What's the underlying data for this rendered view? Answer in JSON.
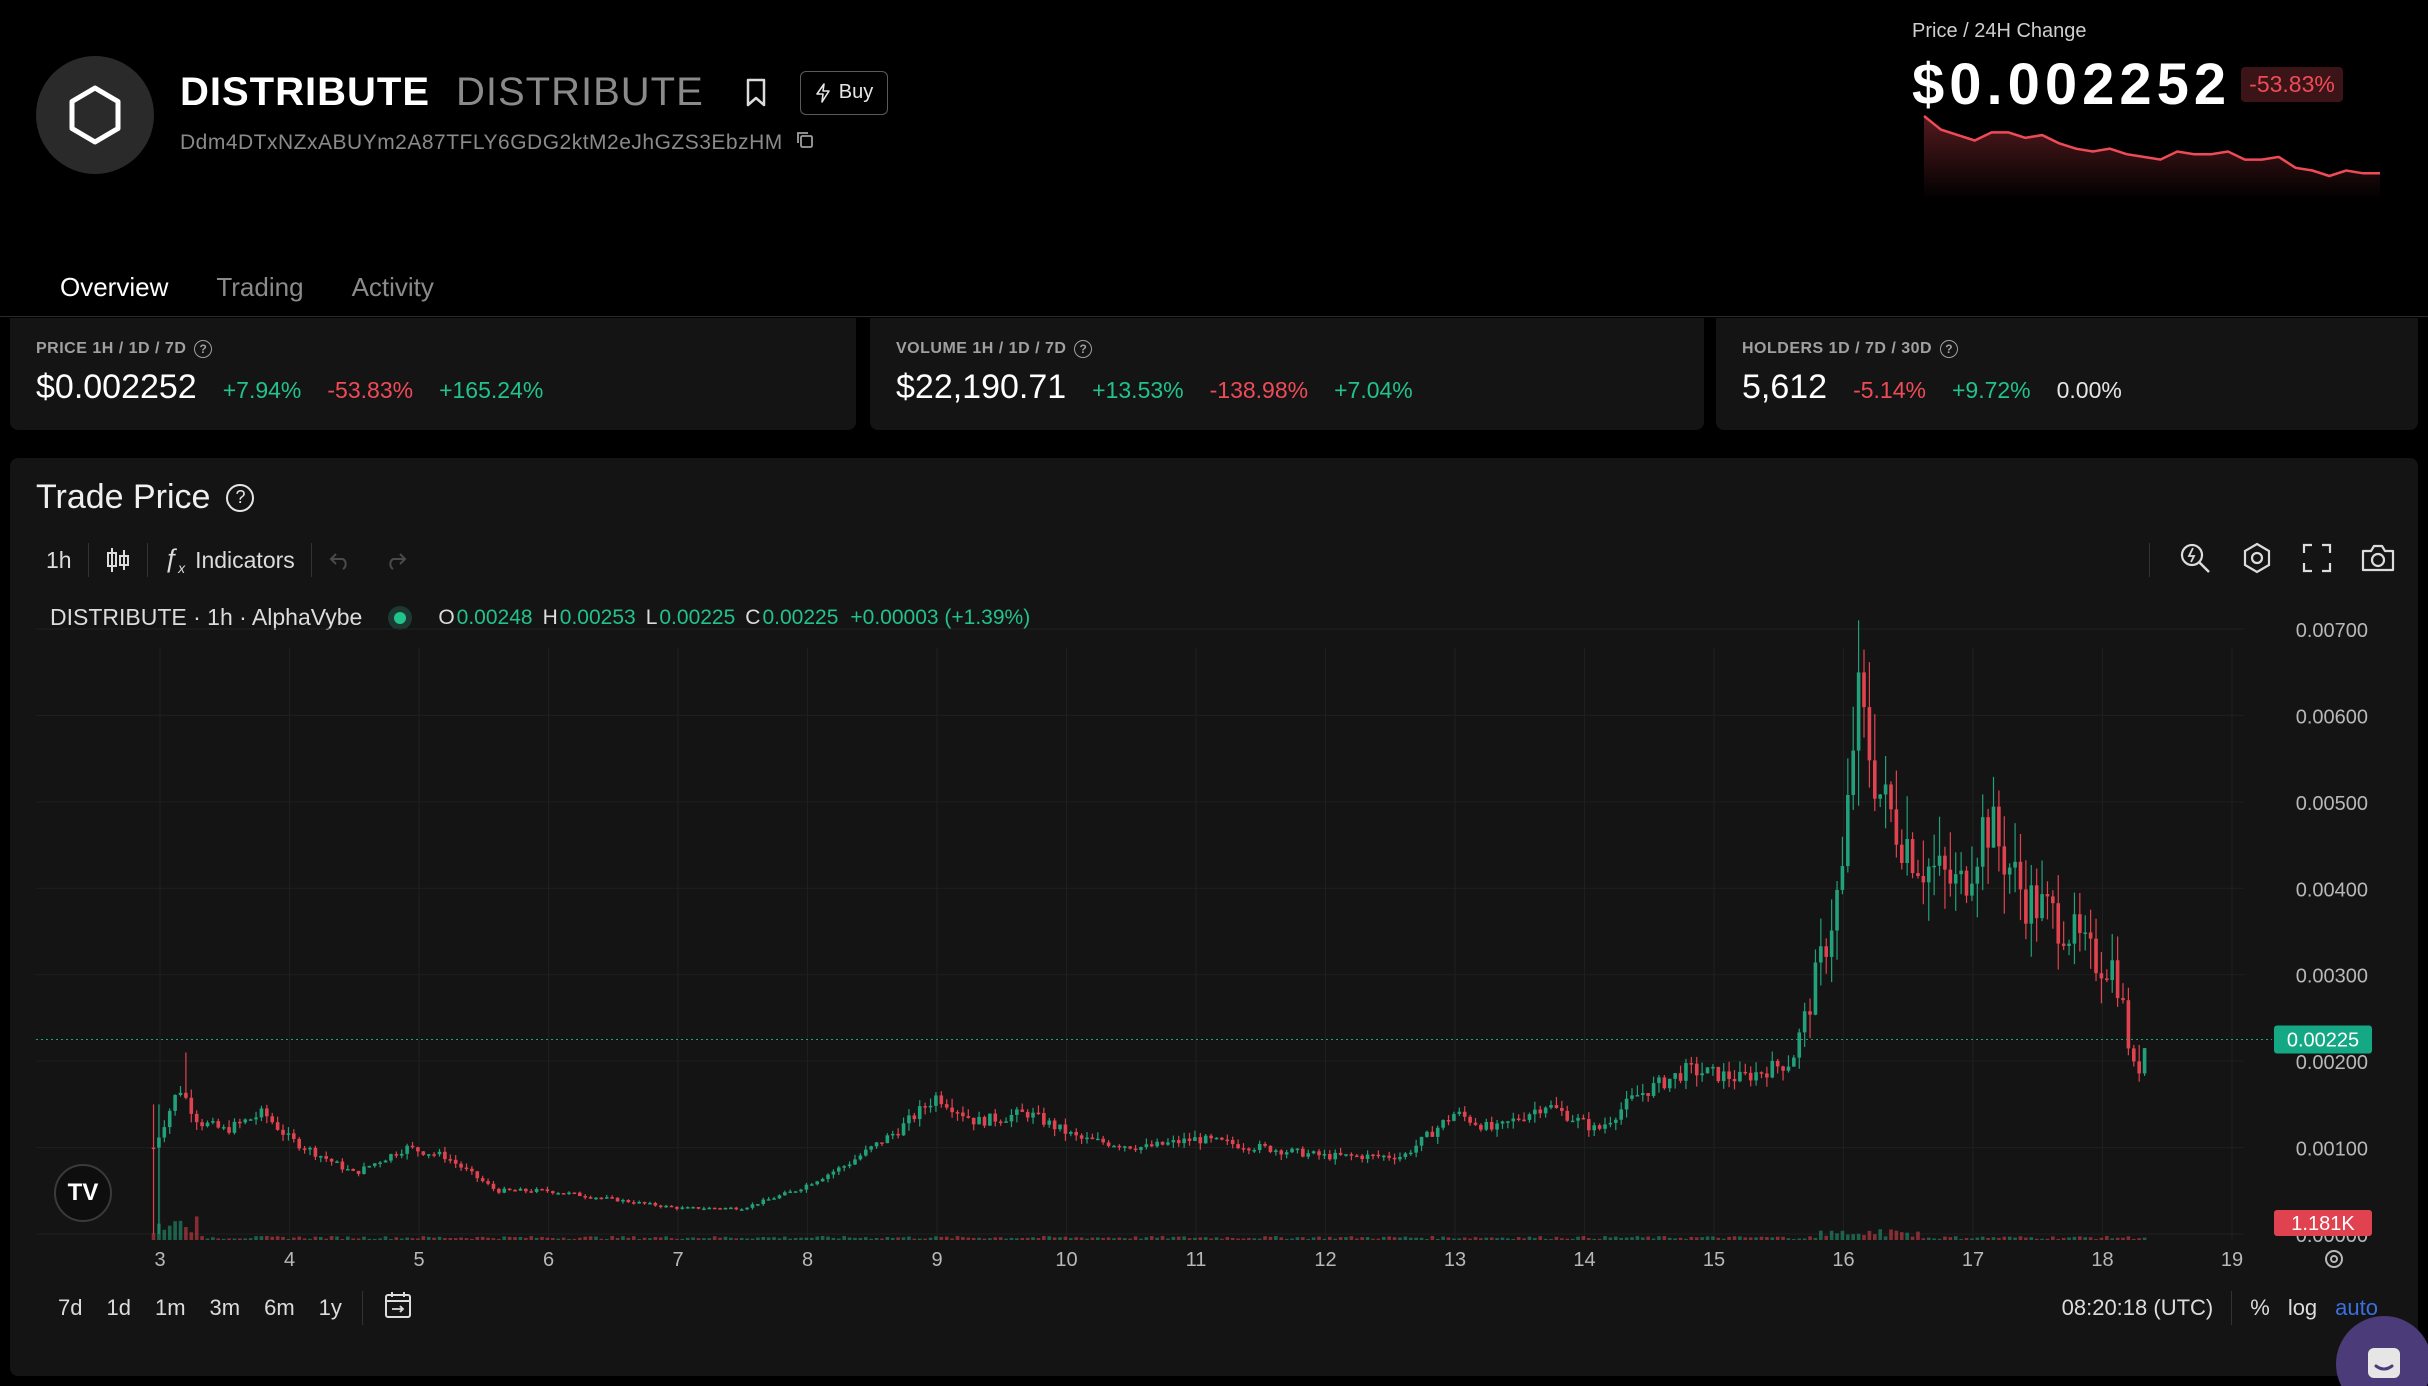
{
  "token": {
    "name": "DISTRIBUTE",
    "symbol": "DISTRIBUTE",
    "address": "Ddm4DTxNZxABUYm2A87TFLY6GDG2ktM2eJhGZS3EbzHM",
    "buy_label": "Buy"
  },
  "price_header": {
    "label": "Price / 24H Change",
    "value": "$0.002252",
    "change": "-53.83%",
    "sparkline_values": [
      0.0048,
      0.0043,
      0.0041,
      0.0039,
      0.0042,
      0.0042,
      0.004,
      0.0041,
      0.0038,
      0.0036,
      0.0035,
      0.0036,
      0.0034,
      0.0033,
      0.0032,
      0.0035,
      0.0034,
      0.0034,
      0.0035,
      0.0032,
      0.0032,
      0.0033,
      0.0029,
      0.0028,
      0.0026,
      0.0028,
      0.0027,
      0.0027
    ]
  },
  "tabs": [
    {
      "label": "Overview"
    },
    {
      "label": "Trading"
    },
    {
      "label": "Activity"
    }
  ],
  "stats": {
    "price": {
      "label": "PRICE 1H / 1D / 7D",
      "value": "$0.002252",
      "c1": "+7.94%",
      "c2": "-53.83%",
      "c3": "+165.24%"
    },
    "volume": {
      "label": "VOLUME 1H / 1D / 7D",
      "value": "$22,190.71",
      "c1": "+13.53%",
      "c2": "-138.98%",
      "c3": "+7.04%"
    },
    "holders": {
      "label": "HOLDERS 1D / 7D / 30D",
      "value": "5,612",
      "c1": "-5.14%",
      "c2": "+9.72%",
      "c3": "0.00%"
    }
  },
  "chart_panel": {
    "title": "Trade Price",
    "interval": "1h",
    "indicators_label": "Indicators",
    "legend_name": "DISTRIBUTE · 1h · AlphaVybe",
    "ohlc": {
      "o_label": "O",
      "o": "0.00248",
      "h_label": "H",
      "h": "0.00253",
      "l_label": "L",
      "l": "0.00225",
      "c_label": "C",
      "c": "0.00225",
      "change": "+0.00003 (+1.39%)"
    },
    "ranges": [
      "7d",
      "1d",
      "1m",
      "3m",
      "6m",
      "1y"
    ],
    "time": "08:20:18 (UTC)",
    "pct_label": "%",
    "log_label": "log",
    "auto_label": "auto",
    "tv_logo": "TV"
  },
  "chart_data": {
    "type": "candlestick",
    "x_ticks": [
      "3",
      "4",
      "5",
      "6",
      "7",
      "8",
      "9",
      "10",
      "11",
      "12",
      "13",
      "14",
      "15",
      "16",
      "17",
      "18",
      "19"
    ],
    "y_ticks": [
      "0.00700",
      "0.00600",
      "0.00500",
      "0.00400",
      "0.00300",
      "0.00200",
      "0.00100",
      "0.00000"
    ],
    "ylim": [
      0,
      0.0072
    ],
    "last_price_label": "0.00225",
    "last_price": 0.00225,
    "volume_label": "1.181K",
    "price_path": [
      [
        2.95,
        0.001
      ],
      [
        3.15,
        0.0017
      ],
      [
        3.3,
        0.0013
      ],
      [
        3.5,
        0.0012
      ],
      [
        3.8,
        0.0014
      ],
      [
        4.0,
        0.0011
      ],
      [
        4.5,
        0.0007
      ],
      [
        4.9,
        0.001
      ],
      [
        5.2,
        0.0009
      ],
      [
        5.6,
        0.0005
      ],
      [
        6.0,
        0.0005
      ],
      [
        6.5,
        0.0004
      ],
      [
        7.0,
        0.0003
      ],
      [
        7.5,
        0.0003
      ],
      [
        7.9,
        0.0005
      ],
      [
        8.3,
        0.0008
      ],
      [
        8.7,
        0.0012
      ],
      [
        9.0,
        0.0016
      ],
      [
        9.3,
        0.0013
      ],
      [
        9.7,
        0.0014
      ],
      [
        10.1,
        0.0011
      ],
      [
        10.6,
        0.001
      ],
      [
        11.0,
        0.0011
      ],
      [
        11.5,
        0.001
      ],
      [
        12.0,
        0.0009
      ],
      [
        12.6,
        0.0009
      ],
      [
        13.0,
        0.0014
      ],
      [
        13.3,
        0.0012
      ],
      [
        13.7,
        0.0015
      ],
      [
        14.1,
        0.0012
      ],
      [
        14.4,
        0.0016
      ],
      [
        14.8,
        0.0019
      ],
      [
        15.2,
        0.0018
      ],
      [
        15.6,
        0.002
      ],
      [
        15.8,
        0.003
      ],
      [
        16.0,
        0.0042
      ],
      [
        16.1,
        0.0062
      ],
      [
        16.3,
        0.005
      ],
      [
        16.6,
        0.0043
      ],
      [
        16.9,
        0.004
      ],
      [
        17.1,
        0.0048
      ],
      [
        17.4,
        0.0039
      ],
      [
        17.7,
        0.0036
      ],
      [
        17.9,
        0.0032
      ],
      [
        18.1,
        0.0031
      ],
      [
        18.25,
        0.0018
      ],
      [
        18.35,
        0.0023
      ]
    ]
  }
}
